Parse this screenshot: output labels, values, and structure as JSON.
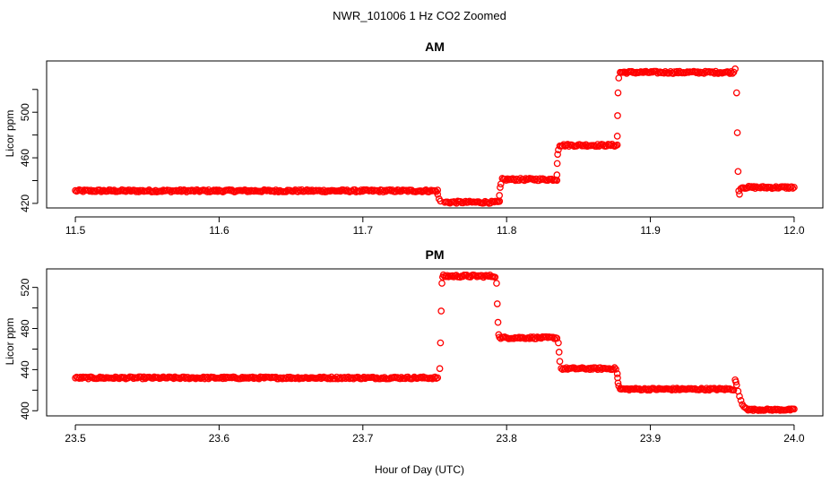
{
  "chart_data": {
    "title": "NWR_101006  1 Hz CO2 Zoomed",
    "xlabel": "Hour of Day (UTC)",
    "ylabel": "Licor ppm",
    "series_color": "#ff0000",
    "panels": [
      {
        "type": "scatter",
        "title": "AM",
        "xlim": [
          11.48,
          12.02
        ],
        "ylim": [
          416,
          545
        ],
        "xticks": [
          11.5,
          11.6,
          11.7,
          11.8,
          11.9,
          12.0
        ],
        "xtick_labels": [
          "11.5",
          "11.6",
          "11.7",
          "11.8",
          "11.9",
          "12.0"
        ],
        "yticks": [
          420,
          440,
          460,
          480,
          500,
          520
        ],
        "ytick_labels": [
          "420",
          "460",
          "500"
        ],
        "segments": [
          {
            "x_start": 11.5,
            "x_end": 11.752,
            "y": 431,
            "noise": 1.0
          },
          {
            "x_start": 11.757,
            "x_end": 11.795,
            "y": 421,
            "noise": 1.0
          },
          {
            "x_start": 11.797,
            "x_end": 11.835,
            "y": 441,
            "noise": 1.0
          },
          {
            "x_start": 11.837,
            "x_end": 11.877,
            "y": 471,
            "noise": 1.0
          },
          {
            "x_start": 11.879,
            "x_end": 11.958,
            "y": 535,
            "noise": 1.0
          },
          {
            "x_start": 11.963,
            "x_end": 12.0,
            "y": 434,
            "noise": 1.0
          }
        ],
        "transition_points": [
          {
            "x": 11.752,
            "y": 428
          },
          {
            "x": 11.753,
            "y": 424
          },
          {
            "x": 11.754,
            "y": 422
          },
          {
            "x": 11.795,
            "y": 422
          },
          {
            "x": 11.795,
            "y": 427
          },
          {
            "x": 11.7955,
            "y": 434
          },
          {
            "x": 11.796,
            "y": 437
          },
          {
            "x": 11.835,
            "y": 445
          },
          {
            "x": 11.8352,
            "y": 455
          },
          {
            "x": 11.8355,
            "y": 463
          },
          {
            "x": 11.836,
            "y": 467
          },
          {
            "x": 11.877,
            "y": 479
          },
          {
            "x": 11.8772,
            "y": 497
          },
          {
            "x": 11.8775,
            "y": 517
          },
          {
            "x": 11.878,
            "y": 530
          },
          {
            "x": 11.959,
            "y": 538
          },
          {
            "x": 11.96,
            "y": 517
          },
          {
            "x": 11.9605,
            "y": 482
          },
          {
            "x": 11.961,
            "y": 448
          },
          {
            "x": 11.9615,
            "y": 431
          },
          {
            "x": 11.962,
            "y": 428
          }
        ]
      },
      {
        "type": "scatter",
        "title": "PM",
        "xlim": [
          23.48,
          24.02
        ],
        "ylim": [
          395,
          538
        ],
        "xticks": [
          23.5,
          23.6,
          23.7,
          23.8,
          23.9,
          24.0
        ],
        "xtick_labels": [
          "23.5",
          "23.6",
          "23.7",
          "23.8",
          "23.9",
          "24.0"
        ],
        "yticks": [
          400,
          420,
          440,
          460,
          480,
          500,
          520
        ],
        "ytick_labels": [
          "400",
          "440",
          "480",
          "520"
        ],
        "segments": [
          {
            "x_start": 23.5,
            "x_end": 23.752,
            "y": 432,
            "noise": 1.0
          },
          {
            "x_start": 23.756,
            "x_end": 23.792,
            "y": 531,
            "noise": 1.2
          },
          {
            "x_start": 23.795,
            "x_end": 23.835,
            "y": 471,
            "noise": 1.0
          },
          {
            "x_start": 23.838,
            "x_end": 23.876,
            "y": 441,
            "noise": 1.0
          },
          {
            "x_start": 23.879,
            "x_end": 23.958,
            "y": 421,
            "noise": 1.0
          },
          {
            "x_start": 23.968,
            "x_end": 24.0,
            "y": 401,
            "noise": 0.8
          }
        ],
        "transition_points": [
          {
            "x": 23.7535,
            "y": 441
          },
          {
            "x": 23.754,
            "y": 466
          },
          {
            "x": 23.7545,
            "y": 497
          },
          {
            "x": 23.755,
            "y": 524
          },
          {
            "x": 23.7555,
            "y": 530
          },
          {
            "x": 23.793,
            "y": 524
          },
          {
            "x": 23.7935,
            "y": 504
          },
          {
            "x": 23.794,
            "y": 486
          },
          {
            "x": 23.7945,
            "y": 474
          },
          {
            "x": 23.836,
            "y": 466
          },
          {
            "x": 23.8365,
            "y": 457
          },
          {
            "x": 23.837,
            "y": 448
          },
          {
            "x": 23.877,
            "y": 436
          },
          {
            "x": 23.8772,
            "y": 432
          },
          {
            "x": 23.8775,
            "y": 427
          },
          {
            "x": 23.878,
            "y": 424
          },
          {
            "x": 23.959,
            "y": 430
          },
          {
            "x": 23.9595,
            "y": 428
          },
          {
            "x": 23.96,
            "y": 425
          },
          {
            "x": 23.961,
            "y": 419
          },
          {
            "x": 23.962,
            "y": 414
          },
          {
            "x": 23.963,
            "y": 410
          },
          {
            "x": 23.964,
            "y": 406
          },
          {
            "x": 23.965,
            "y": 404
          },
          {
            "x": 23.966,
            "y": 403
          },
          {
            "x": 23.967,
            "y": 402
          }
        ]
      }
    ]
  }
}
